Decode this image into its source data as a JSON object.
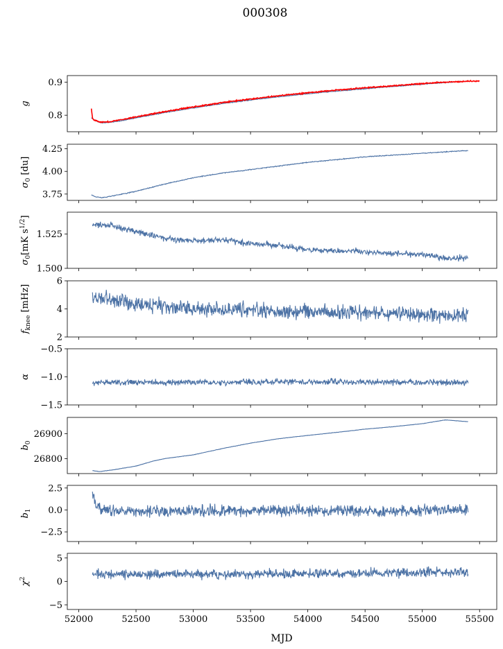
{
  "figure": {
    "title": "000308",
    "xlabel": "MJD"
  },
  "colors": {
    "series": "#4c72a5",
    "overlay": "#ff0000"
  },
  "chart_data": [
    {
      "type": "line",
      "ylabel": "g",
      "ylim": [
        0.75,
        0.92
      ],
      "yticks": [
        0.8,
        0.9
      ],
      "ytick_labels": [
        "0.8",
        "0.9"
      ],
      "xlim": [
        51900,
        55650
      ],
      "series": [
        {
          "color": "#4c72a5",
          "noise": 0.001,
          "x": [
            52110,
            52160,
            52200,
            52260,
            52350,
            52500,
            52750,
            53000,
            53250,
            53500,
            53750,
            54000,
            54250,
            54500,
            54750,
            55000,
            55250,
            55400
          ],
          "y": [
            0.792,
            0.781,
            0.777,
            0.778,
            0.782,
            0.792,
            0.808,
            0.822,
            0.835,
            0.846,
            0.856,
            0.865,
            0.873,
            0.88,
            0.887,
            0.894,
            0.9,
            0.903
          ]
        },
        {
          "color": "#ff0000",
          "noise": 0.0015,
          "x": [
            52110,
            52120,
            52130,
            52160,
            52200,
            52260,
            52350,
            52500,
            52750,
            53000,
            53250,
            53500,
            53750,
            54000,
            54250,
            54500,
            54750,
            55000,
            55250,
            55500
          ],
          "y": [
            0.82,
            0.792,
            0.787,
            0.782,
            0.779,
            0.78,
            0.785,
            0.795,
            0.811,
            0.825,
            0.838,
            0.849,
            0.859,
            0.868,
            0.876,
            0.883,
            0.889,
            0.896,
            0.901,
            0.904
          ]
        }
      ]
    },
    {
      "type": "line",
      "ylabel": "σ0 [du]",
      "ylim": [
        3.68,
        4.3
      ],
      "yticks": [
        3.75,
        4.0,
        4.25
      ],
      "ytick_labels": [
        "3.75",
        "4.00",
        "4.25"
      ],
      "xlim": [
        51900,
        55650
      ],
      "series": [
        {
          "color": "#4c72a5",
          "noise": 0.004,
          "x": [
            52110,
            52150,
            52200,
            52300,
            52500,
            52750,
            53000,
            53250,
            53500,
            53750,
            54000,
            54250,
            54500,
            54750,
            55000,
            55250,
            55400
          ],
          "y": [
            3.74,
            3.72,
            3.71,
            3.73,
            3.78,
            3.86,
            3.93,
            3.98,
            4.02,
            4.06,
            4.1,
            4.13,
            4.16,
            4.18,
            4.2,
            4.22,
            4.23
          ]
        }
      ]
    },
    {
      "type": "line",
      "ylabel": "σ0[mK s1/2]",
      "ylim": [
        1.5,
        1.541
      ],
      "yticks": [
        1.5,
        1.525
      ],
      "ytick_labels": [
        "1.500",
        "1.525"
      ],
      "xlim": [
        51900,
        55650
      ],
      "series": [
        {
          "color": "#4c72a5",
          "noise": 0.0018,
          "x": [
            52120,
            52300,
            52500,
            52750,
            53000,
            53250,
            53500,
            53750,
            54000,
            54250,
            54500,
            54750,
            55000,
            55250,
            55400
          ],
          "y": [
            1.532,
            1.531,
            1.527,
            1.522,
            1.52,
            1.521,
            1.518,
            1.517,
            1.513,
            1.513,
            1.512,
            1.511,
            1.51,
            1.507,
            1.508
          ]
        }
      ]
    },
    {
      "type": "line",
      "ylabel": "fknee [mHz]",
      "ylim": [
        2,
        6
      ],
      "yticks": [
        2,
        4,
        6
      ],
      "ytick_labels": [
        "2",
        "4",
        "6"
      ],
      "xlim": [
        51900,
        55650
      ],
      "series": [
        {
          "color": "#4c72a5",
          "noise": 0.45,
          "x": [
            52120,
            52300,
            52500,
            52750,
            53000,
            53500,
            54000,
            54500,
            55000,
            55400
          ],
          "y": [
            4.8,
            4.6,
            4.4,
            4.2,
            4.0,
            3.9,
            3.8,
            3.7,
            3.6,
            3.5
          ]
        }
      ]
    },
    {
      "type": "line",
      "ylabel": "α",
      "ylim": [
        -1.5,
        -0.5
      ],
      "yticks": [
        -1.5,
        -1.0,
        -0.5
      ],
      "ytick_labels": [
        "−1.5",
        "−1.0",
        "−0.5"
      ],
      "xlim": [
        51900,
        55650
      ],
      "series": [
        {
          "color": "#4c72a5",
          "noise": 0.045,
          "x": [
            52120,
            53000,
            54000,
            55400
          ],
          "y": [
            -1.1,
            -1.1,
            -1.09,
            -1.1
          ]
        }
      ]
    },
    {
      "type": "line",
      "ylabel": "b0",
      "ylim": [
        26740,
        26965
      ],
      "yticks": [
        26800,
        26900
      ],
      "ytick_labels": [
        "26800",
        "26900"
      ],
      "xlim": [
        51900,
        55650
      ],
      "series": [
        {
          "color": "#4c72a5",
          "noise": 0.6,
          "x": [
            52120,
            52180,
            52300,
            52500,
            52650,
            52750,
            53000,
            53250,
            53500,
            53750,
            54000,
            54250,
            54500,
            54750,
            55000,
            55200,
            55400
          ],
          "y": [
            26752,
            26748,
            26755,
            26770,
            26790,
            26800,
            26815,
            26840,
            26862,
            26880,
            26893,
            26905,
            26918,
            26928,
            26940,
            26955,
            26948
          ]
        }
      ]
    },
    {
      "type": "line",
      "ylabel": "b1",
      "ylim": [
        -3.6,
        2.8
      ],
      "yticks": [
        -2.5,
        0.0,
        2.5
      ],
      "ytick_labels": [
        "−2.5",
        "0.0",
        "2.5"
      ],
      "xlim": [
        51900,
        55650
      ],
      "series": [
        {
          "color": "#4c72a5",
          "noise": 0.55,
          "x": [
            52120,
            52140,
            52200,
            52500,
            53000,
            54000,
            55000,
            55400
          ],
          "y": [
            2.0,
            0.8,
            0.0,
            -0.2,
            -0.1,
            -0.1,
            -0.1,
            0.0
          ]
        }
      ]
    },
    {
      "type": "line",
      "ylabel": "χ2",
      "ylim": [
        -6,
        6
      ],
      "yticks": [
        -5,
        0,
        5
      ],
      "ytick_labels": [
        "−5",
        "0",
        "5"
      ],
      "xlim": [
        51900,
        55650
      ],
      "xticks": [
        52000,
        52500,
        53000,
        53500,
        54000,
        54500,
        55000,
        55500
      ],
      "xtick_labels": [
        "52000",
        "52500",
        "53000",
        "53500",
        "54000",
        "54500",
        "55000",
        "55500"
      ],
      "series": [
        {
          "color": "#4c72a5",
          "noise": 0.85,
          "x": [
            52120,
            53000,
            54000,
            55400
          ],
          "y": [
            1.5,
            1.5,
            1.6,
            2.0
          ]
        }
      ]
    }
  ]
}
